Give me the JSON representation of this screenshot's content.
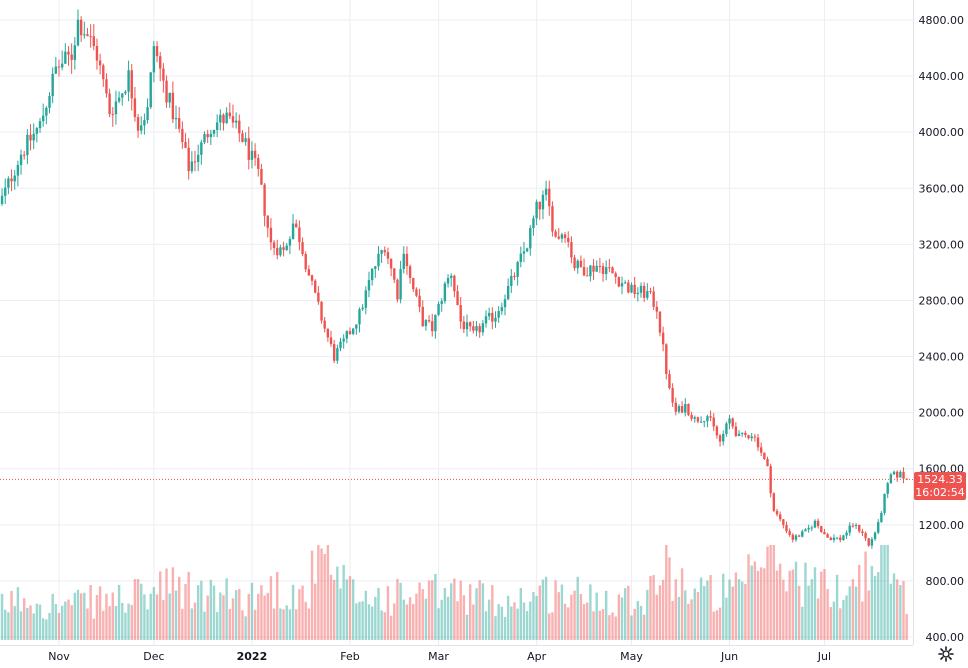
{
  "chart_data": {
    "type": "candlestick",
    "y_axis": {
      "ticks": [
        "4800.00",
        "4400.00",
        "4000.00",
        "3600.00",
        "3200.00",
        "2800.00",
        "2400.00",
        "2000.00",
        "1600.00",
        "1200.00",
        "800.00",
        "400.00"
      ],
      "ylim": [
        350,
        4900
      ],
      "position": "right"
    },
    "x_axis": {
      "ticks": [
        {
          "label": "Nov",
          "day": 0
        },
        {
          "label": "Dec",
          "day": 30
        },
        {
          "label": "2022",
          "day": 61
        },
        {
          "label": "Feb",
          "day": 92
        },
        {
          "label": "Mar",
          "day": 120
        },
        {
          "label": "Apr",
          "day": 151
        },
        {
          "label": "May",
          "day": 181
        },
        {
          "label": "Jun",
          "day": 212
        },
        {
          "label": "Jul",
          "day": 242
        }
      ],
      "first_day": -19,
      "last_day": 268
    },
    "price_anchors": [
      [
        -19,
        3470
      ],
      [
        -12,
        3850
      ],
      [
        -6,
        4050
      ],
      [
        -1,
        4450
      ],
      [
        4,
        4550
      ],
      [
        6,
        4790
      ],
      [
        9,
        4700
      ],
      [
        12,
        4550
      ],
      [
        16,
        4150
      ],
      [
        19,
        4250
      ],
      [
        22,
        4400
      ],
      [
        25,
        4050
      ],
      [
        28,
        4150
      ],
      [
        30,
        4620
      ],
      [
        33,
        4350
      ],
      [
        38,
        4000
      ],
      [
        41,
        3750
      ],
      [
        45,
        3900
      ],
      [
        48,
        4050
      ],
      [
        53,
        4100
      ],
      [
        58,
        3960
      ],
      [
        63,
        3700
      ],
      [
        67,
        3200
      ],
      [
        71,
        3150
      ],
      [
        74,
        3350
      ],
      [
        76,
        3250
      ],
      [
        80,
        2900
      ],
      [
        84,
        2600
      ],
      [
        87,
        2400
      ],
      [
        90,
        2500
      ],
      [
        95,
        2700
      ],
      [
        99,
        3000
      ],
      [
        103,
        3200
      ],
      [
        107,
        2850
      ],
      [
        109,
        3180
      ],
      [
        111,
        2950
      ],
      [
        115,
        2650
      ],
      [
        118,
        2600
      ],
      [
        122,
        2900
      ],
      [
        124,
        3000
      ],
      [
        127,
        2650
      ],
      [
        131,
        2550
      ],
      [
        135,
        2650
      ],
      [
        138,
        2700
      ],
      [
        143,
        2930
      ],
      [
        148,
        3200
      ],
      [
        151,
        3450
      ],
      [
        154,
        3550
      ],
      [
        157,
        3250
      ],
      [
        160,
        3300
      ],
      [
        163,
        3050
      ],
      [
        167,
        3020
      ],
      [
        170,
        3050
      ],
      [
        173,
        3030
      ],
      [
        177,
        2950
      ],
      [
        181,
        2870
      ],
      [
        186,
        2850
      ],
      [
        189,
        2750
      ],
      [
        191,
        2450
      ],
      [
        193,
        2150
      ],
      [
        195,
        2000
      ],
      [
        198,
        2050
      ],
      [
        201,
        1950
      ],
      [
        205,
        1980
      ],
      [
        209,
        1790
      ],
      [
        212,
        1950
      ],
      [
        215,
        1820
      ],
      [
        219,
        1850
      ],
      [
        221,
        1780
      ],
      [
        224,
        1600
      ],
      [
        226,
        1300
      ],
      [
        229,
        1200
      ],
      [
        232,
        1100
      ],
      [
        236,
        1150
      ],
      [
        239,
        1220
      ],
      [
        243,
        1110
      ],
      [
        247,
        1100
      ],
      [
        251,
        1200
      ],
      [
        254,
        1150
      ],
      [
        256,
        1050
      ],
      [
        259,
        1200
      ],
      [
        261,
        1400
      ],
      [
        263,
        1550
      ],
      [
        266,
        1560
      ],
      [
        268,
        1524
      ]
    ],
    "volume_anchors": [
      [
        -19,
        0.35
      ],
      [
        -10,
        0.45
      ],
      [
        0,
        0.35
      ],
      [
        10,
        0.4
      ],
      [
        25,
        0.45
      ],
      [
        35,
        0.55
      ],
      [
        50,
        0.45
      ],
      [
        60,
        0.45
      ],
      [
        68,
        0.55
      ],
      [
        78,
        0.45
      ],
      [
        82,
        0.9
      ],
      [
        88,
        0.6
      ],
      [
        95,
        0.45
      ],
      [
        110,
        0.45
      ],
      [
        125,
        0.5
      ],
      [
        140,
        0.4
      ],
      [
        155,
        0.5
      ],
      [
        175,
        0.45
      ],
      [
        185,
        0.45
      ],
      [
        192,
        0.8
      ],
      [
        200,
        0.5
      ],
      [
        215,
        0.5
      ],
      [
        224,
        0.9
      ],
      [
        230,
        0.7
      ],
      [
        245,
        0.5
      ],
      [
        255,
        0.7
      ],
      [
        262,
        0.8
      ],
      [
        268,
        0.45
      ]
    ],
    "last_price": {
      "value": "1524.33",
      "value_num": 1524.33,
      "countdown": "16:02:54"
    },
    "colors": {
      "up": "#26a69a",
      "down": "#ef5350",
      "grid": "#eceef2",
      "text": "#131722"
    },
    "grid": true
  },
  "ui": {
    "settings_icon": "gear-icon"
  }
}
